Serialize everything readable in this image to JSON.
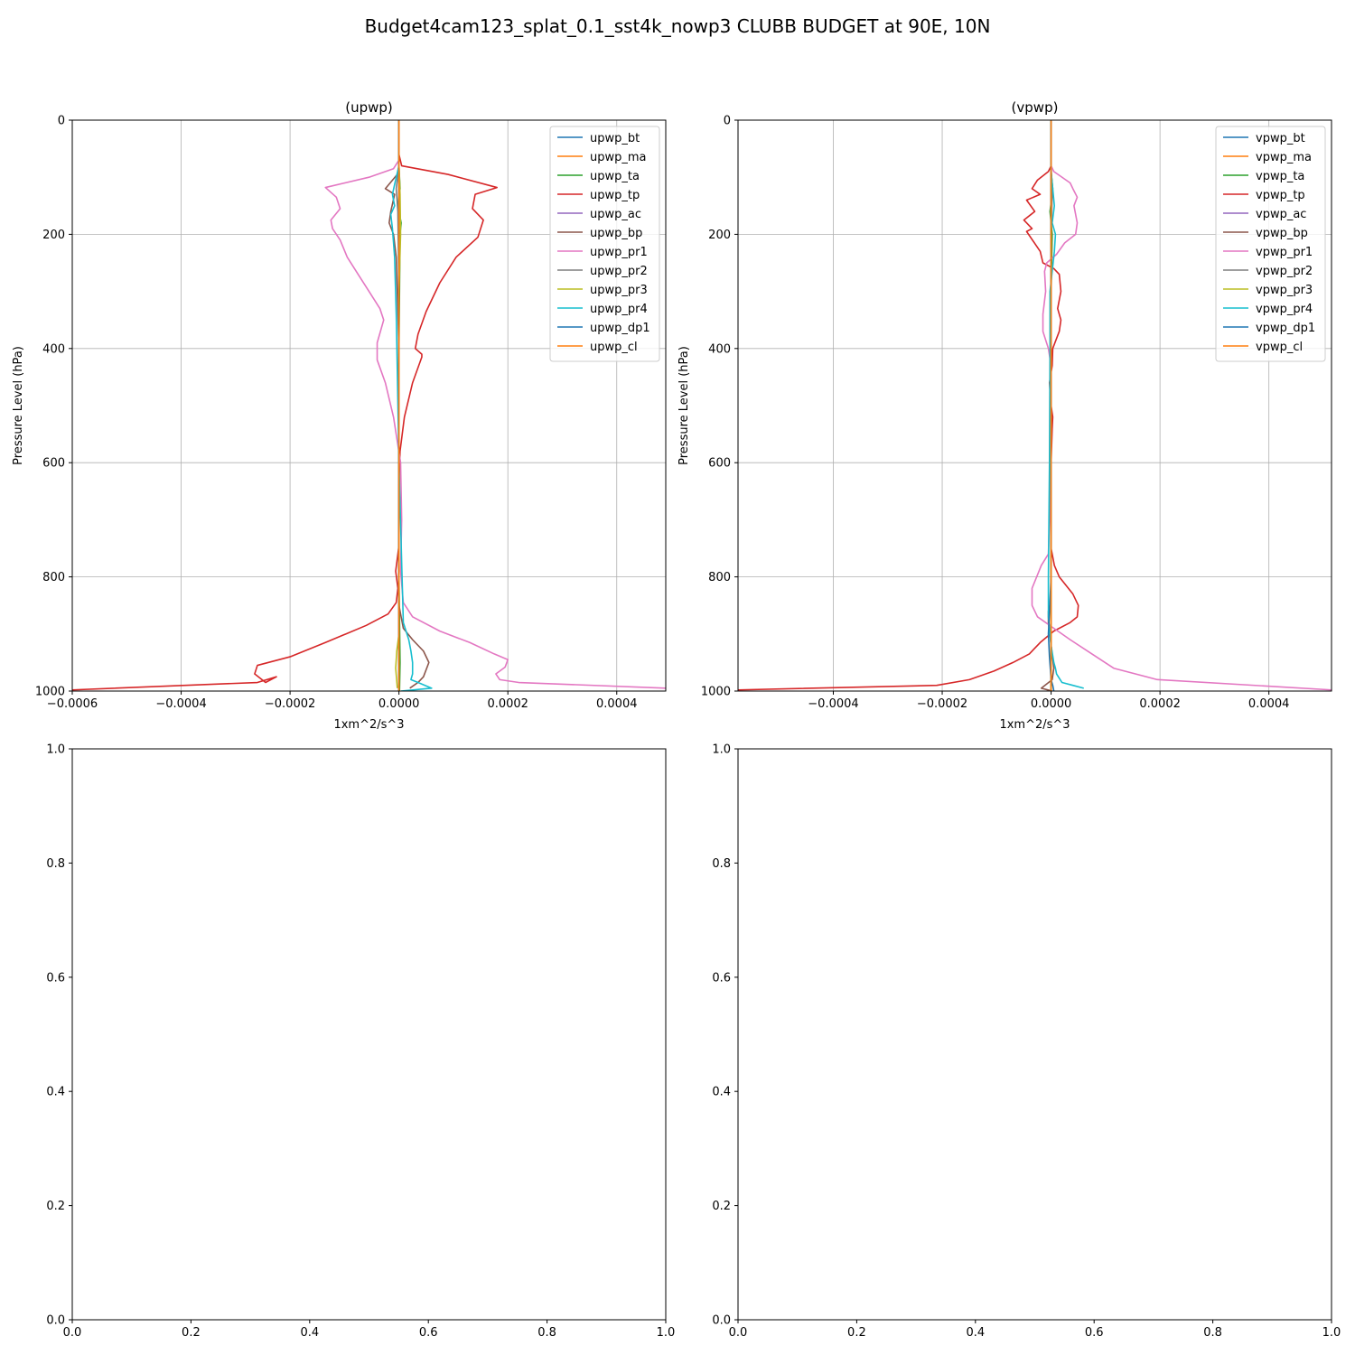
{
  "figure": {
    "suptitle": "Budget4cam123_splat_0.1_sst4k_nowp3 CLUBB BUDGET at 90E, 10N"
  },
  "chart_data": [
    {
      "type": "line",
      "title": "(upwp)",
      "xlabel": "1xm^2/s^3",
      "ylabel": "Pressure Level (hPa)",
      "xlim": [
        -0.0006,
        0.00049
      ],
      "ylim": [
        1000,
        0
      ],
      "xticks": [
        -0.0006,
        -0.0004,
        -0.0002,
        0.0,
        0.0002,
        0.0004
      ],
      "xticklabels": [
        "−0.0006",
        "−0.0004",
        "−0.0002",
        "0.0000",
        "0.0002",
        "0.0004"
      ],
      "yticks": [
        0,
        200,
        400,
        600,
        800,
        1000
      ],
      "yticklabels": [
        "0",
        "200",
        "400",
        "600",
        "800",
        "1000"
      ],
      "grid": true,
      "legend_position": "top-right",
      "series": [
        {
          "name": "upwp_bt",
          "color": "#1f77b4",
          "x": [
            0,
            0,
            0,
            0
          ],
          "y": [
            0,
            400,
            800,
            1000
          ]
        },
        {
          "name": "upwp_ma",
          "color": "#ff7f0e",
          "x": [
            0,
            0,
            0,
            0
          ],
          "y": [
            0,
            400,
            800,
            1000
          ]
        },
        {
          "name": "upwp_ta",
          "color": "#2ca02c",
          "x": [
            0,
            0,
            2e-06,
            -2e-06,
            4e-06,
            2e-06,
            0,
            0,
            2e-06,
            1e-06
          ],
          "y": [
            0,
            80,
            120,
            150,
            180,
            200,
            400,
            800,
            950,
            1000
          ]
        },
        {
          "name": "upwp_tp",
          "color": "#d62728",
          "x": [
            0,
            0,
            5e-06,
            9e-05,
            0.00018,
            0.00014,
            0.000135,
            0.000155,
            0.000145,
            0.000105,
            7.5e-05,
            5e-05,
            3.5e-05,
            3e-05,
            4.2e-05,
            4.2e-05,
            2.5e-05,
            1e-05,
            2e-06,
            0,
            0,
            -6e-06,
            -2e-06,
            -5e-06,
            -2e-05,
            -6e-05,
            -0.000135,
            -0.0002,
            -0.00026,
            -0.000265,
            -0.000245,
            -0.000225,
            -0.00026,
            -0.0006
          ],
          "y": [
            0,
            60,
            80,
            95,
            118,
            130,
            155,
            175,
            205,
            240,
            285,
            335,
            375,
            400,
            410,
            415,
            460,
            520,
            580,
            640,
            745,
            790,
            820,
            845,
            865,
            885,
            915,
            940,
            955,
            970,
            985,
            975,
            985,
            998
          ]
        },
        {
          "name": "upwp_ac",
          "color": "#9467bd",
          "x": [
            0,
            0,
            0,
            0
          ],
          "y": [
            0,
            400,
            800,
            1000
          ]
        },
        {
          "name": "upwp_bp",
          "color": "#8c564b",
          "x": [
            0,
            0,
            -3e-06,
            -2.5e-05,
            -8e-06,
            -1.5e-05,
            -1.8e-05,
            -1e-05,
            -5e-06,
            0,
            0,
            0,
            8e-06,
            2.5e-05,
            4.5e-05,
            5.5e-05,
            4.5e-05,
            3.5e-05,
            2e-05
          ],
          "y": [
            0,
            80,
            95,
            120,
            130,
            160,
            180,
            200,
            240,
            400,
            600,
            850,
            890,
            910,
            930,
            950,
            975,
            985,
            995
          ]
        },
        {
          "name": "upwp_pr1",
          "color": "#e377c2",
          "x": [
            0,
            0,
            -1e-05,
            -5.5e-05,
            -0.000135,
            -0.000115,
            -0.000108,
            -0.000125,
            -0.000122,
            -0.000108,
            -9.5e-05,
            -7.5e-05,
            -5.5e-05,
            -3.5e-05,
            -2.8e-05,
            -4e-05,
            -4e-05,
            -2.5e-05,
            -1e-05,
            3e-06,
            5e-06,
            3e-06,
            8e-06,
            2.5e-05,
            7.5e-05,
            0.00013,
            0.000175,
            0.0002,
            0.000195,
            0.000178,
            0.000185,
            0.00022,
            0.00049
          ],
          "y": [
            0,
            70,
            85,
            100,
            118,
            135,
            155,
            175,
            190,
            210,
            240,
            270,
            300,
            330,
            350,
            390,
            420,
            460,
            520,
            600,
            700,
            790,
            845,
            870,
            895,
            915,
            935,
            945,
            958,
            970,
            980,
            985,
            995
          ]
        },
        {
          "name": "upwp_pr2",
          "color": "#7f7f7f",
          "x": [
            0,
            0,
            -5e-06,
            -2e-06,
            0,
            0
          ],
          "y": [
            0,
            80,
            120,
            160,
            300,
            1000
          ]
        },
        {
          "name": "upwp_pr3",
          "color": "#bcbd22",
          "x": [
            0,
            0,
            2e-06,
            3e-06,
            0,
            0,
            -4e-06,
            -6e-06,
            -3e-06
          ],
          "y": [
            0,
            80,
            130,
            200,
            300,
            900,
            930,
            960,
            995
          ]
        },
        {
          "name": "upwp_pr4",
          "color": "#17becf",
          "x": [
            0,
            0,
            -5e-06,
            -1.2e-05,
            -8e-06,
            -1.5e-05,
            -1.2e-05,
            -8e-06,
            -5e-06,
            -3e-06,
            0,
            8e-06,
            1.8e-05,
            2.2e-05,
            2.5e-05,
            2.5e-05,
            2.2e-05,
            3.5e-05,
            6e-05,
            4e-06
          ],
          "y": [
            0,
            80,
            100,
            130,
            150,
            165,
            190,
            240,
            340,
            440,
            600,
            880,
            910,
            930,
            950,
            970,
            980,
            985,
            995,
            1000
          ]
        },
        {
          "name": "upwp_dp1",
          "color": "#1f77b4",
          "x": [
            0,
            0,
            0,
            0
          ],
          "y": [
            0,
            400,
            800,
            1000
          ]
        },
        {
          "name": "upwp_cl",
          "color": "#ff7f0e",
          "x": [
            0,
            0,
            0,
            0
          ],
          "y": [
            0,
            400,
            800,
            1000
          ]
        }
      ]
    },
    {
      "type": "line",
      "title": "(vpwp)",
      "xlabel": "1xm^2/s^3",
      "ylabel": "Pressure Level (hPa)",
      "xlim": [
        -0.000575,
        0.000515
      ],
      "ylim": [
        1000,
        0
      ],
      "xticks": [
        -0.0004,
        -0.0002,
        0.0,
        0.0002,
        0.0004
      ],
      "xticklabels": [
        "−0.0004",
        "−0.0002",
        "0.0000",
        "0.0002",
        "0.0004"
      ],
      "yticks": [
        0,
        200,
        400,
        600,
        800,
        1000
      ],
      "yticklabels": [
        "0",
        "200",
        "400",
        "600",
        "800",
        "1000"
      ],
      "grid": true,
      "legend_position": "top-right",
      "series": [
        {
          "name": "vpwp_bt",
          "color": "#1f77b4",
          "x": [
            0,
            0,
            0,
            0
          ],
          "y": [
            0,
            400,
            800,
            1000
          ]
        },
        {
          "name": "vpwp_ma",
          "color": "#ff7f0e",
          "x": [
            0,
            0,
            0,
            0
          ],
          "y": [
            0,
            400,
            800,
            1000
          ]
        },
        {
          "name": "vpwp_ta",
          "color": "#2ca02c",
          "x": [
            0,
            0,
            3e-06,
            -2e-06,
            2e-06,
            0,
            0,
            0
          ],
          "y": [
            0,
            90,
            120,
            160,
            200,
            300,
            800,
            1000
          ]
        },
        {
          "name": "vpwp_tp",
          "color": "#d62728",
          "x": [
            0,
            0,
            -5e-06,
            -2.5e-05,
            -3.5e-05,
            -2e-05,
            -4.5e-05,
            -3e-05,
            -5e-05,
            -3.5e-05,
            -4.5e-05,
            -2e-05,
            -1.5e-05,
            5e-06,
            1.5e-05,
            1.8e-05,
            1.2e-05,
            1.8e-05,
            1.5e-05,
            3e-06,
            2e-06,
            -3e-06,
            0,
            3e-06,
            2e-06,
            0,
            0,
            6e-06,
            1.5e-05,
            4e-05,
            5e-05,
            4.8e-05,
            3.5e-05,
            5e-06,
            -2e-05,
            -4e-05,
            -7e-05,
            -0.000105,
            -0.00015,
            -0.00021,
            -0.000575
          ],
          "y": [
            0,
            80,
            90,
            105,
            120,
            130,
            140,
            160,
            175,
            190,
            195,
            230,
            250,
            260,
            270,
            300,
            330,
            350,
            370,
            400,
            430,
            460,
            500,
            520,
            540,
            600,
            750,
            780,
            800,
            830,
            850,
            870,
            880,
            895,
            915,
            935,
            950,
            965,
            980,
            990,
            998
          ]
        },
        {
          "name": "vpwp_ac",
          "color": "#9467bd",
          "x": [
            0,
            0,
            0,
            0
          ],
          "y": [
            0,
            400,
            800,
            1000
          ]
        },
        {
          "name": "vpwp_bp",
          "color": "#8c564b",
          "x": [
            0,
            0,
            0,
            -5e-06,
            -5e-06,
            0,
            5e-06,
            2e-06,
            -1.8e-05,
            2e-06
          ],
          "y": [
            0,
            400,
            840,
            860,
            880,
            920,
            960,
            980,
            995,
            1000
          ]
        },
        {
          "name": "vpwp_pr1",
          "color": "#e377c2",
          "x": [
            0,
            0,
            5e-06,
            3.5e-05,
            4e-05,
            4.8e-05,
            4.2e-05,
            4.8e-05,
            4.5e-05,
            2.5e-05,
            1e-05,
            -8e-06,
            -1.2e-05,
            -1e-05,
            -1.5e-05,
            -1.5e-05,
            -5e-06,
            0,
            0,
            -2e-06,
            -2e-06,
            -3e-06,
            -5e-06,
            -1.8e-05,
            -3.5e-05,
            -3.5e-05,
            -2.5e-05,
            5e-06,
            3.5e-05,
            7.5e-05,
            0.000115,
            0.000195,
            0.000515
          ],
          "y": [
            0,
            80,
            90,
            110,
            120,
            135,
            150,
            180,
            200,
            215,
            235,
            250,
            265,
            300,
            340,
            370,
            400,
            430,
            500,
            520,
            600,
            700,
            760,
            780,
            820,
            850,
            870,
            890,
            910,
            935,
            960,
            980,
            998
          ]
        },
        {
          "name": "vpwp_pr2",
          "color": "#7f7f7f",
          "x": [
            0,
            0,
            2e-06,
            0,
            0,
            0
          ],
          "y": [
            0,
            80,
            130,
            200,
            500,
            1000
          ]
        },
        {
          "name": "vpwp_pr3",
          "color": "#bcbd22",
          "x": [
            0,
            0,
            0,
            0
          ],
          "y": [
            0,
            400,
            800,
            1000
          ]
        },
        {
          "name": "vpwp_pr4",
          "color": "#17becf",
          "x": [
            0,
            0,
            3e-06,
            6e-06,
            2e-06,
            8e-06,
            6e-06,
            -2e-06,
            -2e-06,
            -3e-06,
            -5e-06,
            -5e-06,
            0,
            5e-06,
            8e-06,
            1e-05,
            2e-05,
            4e-05,
            6e-05
          ],
          "y": [
            0,
            90,
            120,
            150,
            180,
            200,
            230,
            300,
            400,
            600,
            800,
            870,
            920,
            950,
            960,
            970,
            985,
            990,
            995
          ]
        },
        {
          "name": "vpwp_dp1",
          "color": "#1f77b4",
          "x": [
            0,
            0,
            -3e-06,
            -5e-06,
            -3e-06,
            0,
            3e-06,
            5e-06
          ],
          "y": [
            0,
            800,
            860,
            900,
            940,
            980,
            990,
            1000
          ]
        },
        {
          "name": "vpwp_cl",
          "color": "#ff7f0e",
          "x": [
            0,
            0,
            0,
            0
          ],
          "y": [
            0,
            400,
            800,
            1000
          ]
        }
      ]
    },
    {
      "type": "line",
      "title": "",
      "xlabel": "",
      "ylabel": "",
      "xlim": [
        0,
        1
      ],
      "ylim": [
        0,
        1
      ],
      "xticks": [
        0,
        0.2,
        0.4,
        0.6,
        0.8,
        1.0
      ],
      "xticklabels": [
        "0.0",
        "0.2",
        "0.4",
        "0.6",
        "0.8",
        "1.0"
      ],
      "yticks": [
        0,
        0.2,
        0.4,
        0.6,
        0.8,
        1.0
      ],
      "yticklabels": [
        "0.0",
        "0.2",
        "0.4",
        "0.6",
        "0.8",
        "1.0"
      ],
      "grid": false,
      "series": []
    },
    {
      "type": "line",
      "title": "",
      "xlabel": "",
      "ylabel": "",
      "xlim": [
        0,
        1
      ],
      "ylim": [
        0,
        1
      ],
      "xticks": [
        0,
        0.2,
        0.4,
        0.6,
        0.8,
        1.0
      ],
      "xticklabels": [
        "0.0",
        "0.2",
        "0.4",
        "0.6",
        "0.8",
        "1.0"
      ],
      "yticks": [
        0,
        0.2,
        0.4,
        0.6,
        0.8,
        1.0
      ],
      "yticklabels": [
        "0.0",
        "0.2",
        "0.4",
        "0.6",
        "0.8",
        "1.0"
      ],
      "grid": false,
      "series": []
    }
  ]
}
